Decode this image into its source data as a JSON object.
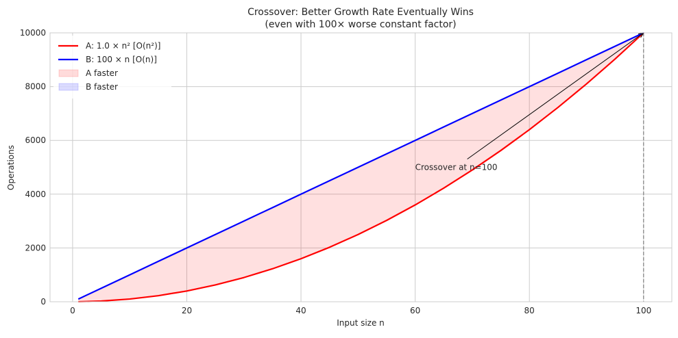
{
  "chart_data": {
    "type": "line",
    "title": "Crossover: Better Growth Rate Eventually Wins",
    "subtitle": "(even with 100× worse constant factor)",
    "xlabel": "Input size n",
    "ylabel": "Operations",
    "xlim": [
      -3.95,
      104.95
    ],
    "ylim": [
      0,
      10000
    ],
    "xticks": [
      0,
      20,
      40,
      60,
      80,
      100
    ],
    "yticks": [
      0,
      2000,
      4000,
      6000,
      8000,
      10000
    ],
    "grid": true,
    "legend_placement": "top-left",
    "x": [
      1,
      5,
      10,
      15,
      20,
      25,
      30,
      35,
      40,
      45,
      50,
      55,
      60,
      65,
      70,
      75,
      80,
      85,
      90,
      95,
      100
    ],
    "series": [
      {
        "name": "A: 1.0 × n²  [O(n²)]",
        "color": "#ff0000",
        "values": [
          1,
          25,
          100,
          225,
          400,
          625,
          900,
          1225,
          1600,
          2025,
          2500,
          3025,
          3600,
          4225,
          4900,
          5625,
          6400,
          7225,
          8100,
          9025,
          10000
        ]
      },
      {
        "name": "B: 100 × n   [O(n)]",
        "color": "#0000ff",
        "values": [
          100,
          500,
          1000,
          1500,
          2000,
          2500,
          3000,
          3500,
          4000,
          4500,
          5000,
          5500,
          6000,
          6500,
          7000,
          7500,
          8000,
          8500,
          9000,
          9500,
          10000
        ]
      }
    ],
    "fills": [
      {
        "name": "A faster",
        "color": "#ff0000",
        "alpha": 0.12
      },
      {
        "name": "B faster",
        "color": "#0000ff",
        "alpha": 0.12
      }
    ],
    "vline": {
      "x": 100,
      "color": "#808080",
      "style": "dashed"
    },
    "annotation": {
      "text": "Crossover at n=100",
      "text_xy": [
        60,
        5000
      ],
      "point_xy": [
        100,
        10000
      ]
    }
  }
}
